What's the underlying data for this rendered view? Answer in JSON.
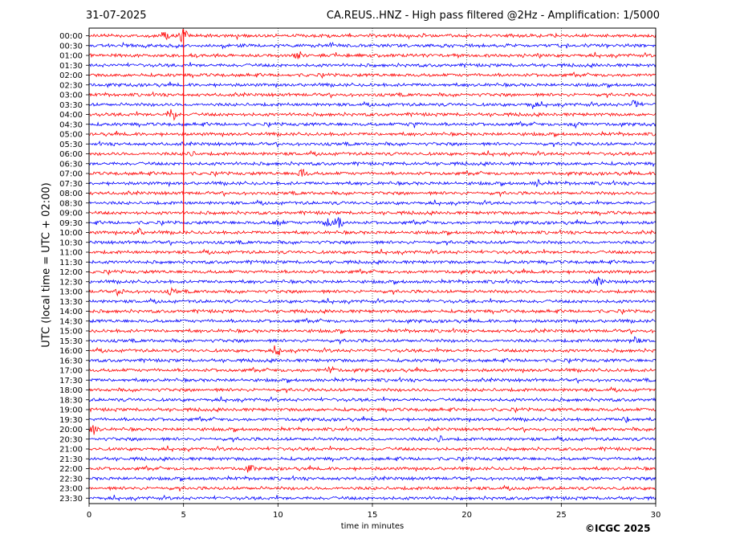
{
  "header": {
    "date": "31-07-2025",
    "title": "CA.REUS..HNZ - High pass filtered @2Hz - Amplification: 1/5000"
  },
  "footer": {
    "copyright": "©ICGC 2025"
  },
  "chart_data": {
    "type": "line",
    "title": "CA.REUS..HNZ - High pass filtered @2Hz - Amplification: 1/5000",
    "xlabel": "time in minutes",
    "ylabel": "UTC (local time = UTC + 02:00)",
    "xlim": [
      0,
      30
    ],
    "x_ticks": [
      "0",
      "5",
      "10",
      "15",
      "20",
      "25",
      "30"
    ],
    "x_grid": "dotted vertical at 5,10,15,20,25",
    "rows": [
      "00:00",
      "00:30",
      "01:00",
      "01:30",
      "02:00",
      "02:30",
      "03:00",
      "03:30",
      "04:00",
      "04:30",
      "05:00",
      "05:30",
      "06:00",
      "06:30",
      "07:00",
      "07:30",
      "08:00",
      "08:30",
      "09:00",
      "09:30",
      "10:00",
      "10:30",
      "11:00",
      "11:30",
      "12:00",
      "12:30",
      "13:00",
      "13:30",
      "14:00",
      "14:30",
      "15:00",
      "15:30",
      "16:00",
      "16:30",
      "17:00",
      "17:30",
      "18:00",
      "18:30",
      "19:00",
      "19:30",
      "20:00",
      "20:30",
      "21:00",
      "21:30",
      "22:00",
      "22:30",
      "23:00",
      "23:30"
    ],
    "row_colors": [
      "#ff0000",
      "#0000ff"
    ],
    "row_color_rule": "alternating red / blue starting with red at 00:00",
    "events": [
      {
        "row": "00:00",
        "x": 5.0,
        "amp": 1.0
      },
      {
        "row": "00:00",
        "x": 4.0,
        "amp": 0.5
      },
      {
        "row": "01:00",
        "x": 11.1,
        "amp": 0.35
      },
      {
        "row": "03:30",
        "x": 28.9,
        "amp": 0.7
      },
      {
        "row": "03:30",
        "x": 23.5,
        "amp": 0.4
      },
      {
        "row": "04:00",
        "x": 4.4,
        "amp": 0.9
      },
      {
        "row": "04:30",
        "x": 17.2,
        "amp": 0.45
      },
      {
        "row": "04:30",
        "x": 25.8,
        "amp": 0.5
      },
      {
        "row": "06:00",
        "x": 5.3,
        "amp": 0.45
      },
      {
        "row": "07:00",
        "x": 11.3,
        "amp": 0.6
      },
      {
        "row": "07:30",
        "x": 23.8,
        "amp": 0.4
      },
      {
        "row": "09:30",
        "x": 12.6,
        "amp": 0.85
      },
      {
        "row": "09:30",
        "x": 13.2,
        "amp": 0.8
      },
      {
        "row": "09:30",
        "x": 10.0,
        "amp": 0.45
      },
      {
        "row": "10:00",
        "x": 2.6,
        "amp": 0.5
      },
      {
        "row": "12:30",
        "x": 27.0,
        "amp": 0.5
      },
      {
        "row": "13:00",
        "x": 1.7,
        "amp": 0.4
      },
      {
        "row": "13:00",
        "x": 4.4,
        "amp": 0.4
      },
      {
        "row": "15:30",
        "x": 28.9,
        "amp": 0.45
      },
      {
        "row": "16:00",
        "x": 10.0,
        "amp": 0.6
      },
      {
        "row": "17:00",
        "x": 12.8,
        "amp": 0.45
      },
      {
        "row": "19:30",
        "x": 28.5,
        "amp": 0.35
      },
      {
        "row": "20:00",
        "x": 0.3,
        "amp": 0.6
      },
      {
        "row": "20:30",
        "x": 18.5,
        "amp": 0.4
      },
      {
        "row": "22:00",
        "x": 8.5,
        "amp": 0.45
      }
    ],
    "vertical_spike": {
      "x": 5.0,
      "from_row": "00:00",
      "to_row": "10:00"
    },
    "grid": true
  }
}
